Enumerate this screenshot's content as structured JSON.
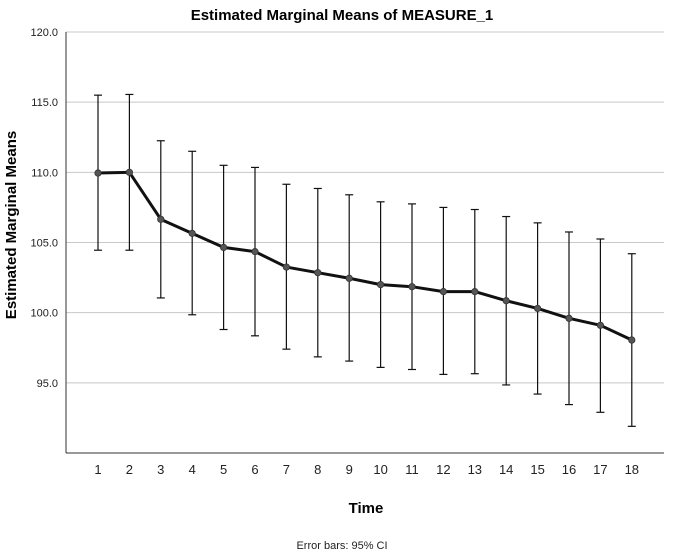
{
  "chart_data": {
    "type": "line",
    "title": "Estimated Marginal Means of MEASURE_1",
    "xlabel": "Time",
    "ylabel": "Estimated Marginal Means",
    "footnote": "Error bars: 95% CI",
    "categories": [
      "1",
      "2",
      "3",
      "4",
      "5",
      "6",
      "7",
      "8",
      "9",
      "10",
      "11",
      "12",
      "13",
      "14",
      "15",
      "16",
      "17",
      "18"
    ],
    "ylim": [
      90.0,
      120.0
    ],
    "yticks": [
      "95.0",
      "100.0",
      "105.0",
      "110.0",
      "115.0",
      "120.0"
    ],
    "grid": true,
    "series": [
      {
        "values": [
          109.95,
          110.0,
          106.65,
          105.65,
          104.65,
          104.35,
          103.25,
          102.85,
          102.45,
          102.0,
          101.85,
          101.5,
          101.5,
          100.85,
          100.3,
          99.6,
          99.1,
          98.05
        ],
        "ci_lower": [
          104.45,
          104.45,
          101.05,
          99.85,
          98.8,
          98.35,
          97.4,
          96.85,
          96.55,
          96.1,
          95.95,
          95.6,
          95.65,
          94.85,
          94.2,
          93.45,
          92.9,
          91.9
        ],
        "ci_upper": [
          115.5,
          115.55,
          112.25,
          111.5,
          110.5,
          110.35,
          109.15,
          108.85,
          108.4,
          107.9,
          107.75,
          107.5,
          107.35,
          106.85,
          106.4,
          105.75,
          105.25,
          104.2
        ]
      }
    ],
    "colors": {
      "line": "#111111",
      "marker": "#555555",
      "grid": "#c8c8c8",
      "axis": "#333333"
    }
  }
}
